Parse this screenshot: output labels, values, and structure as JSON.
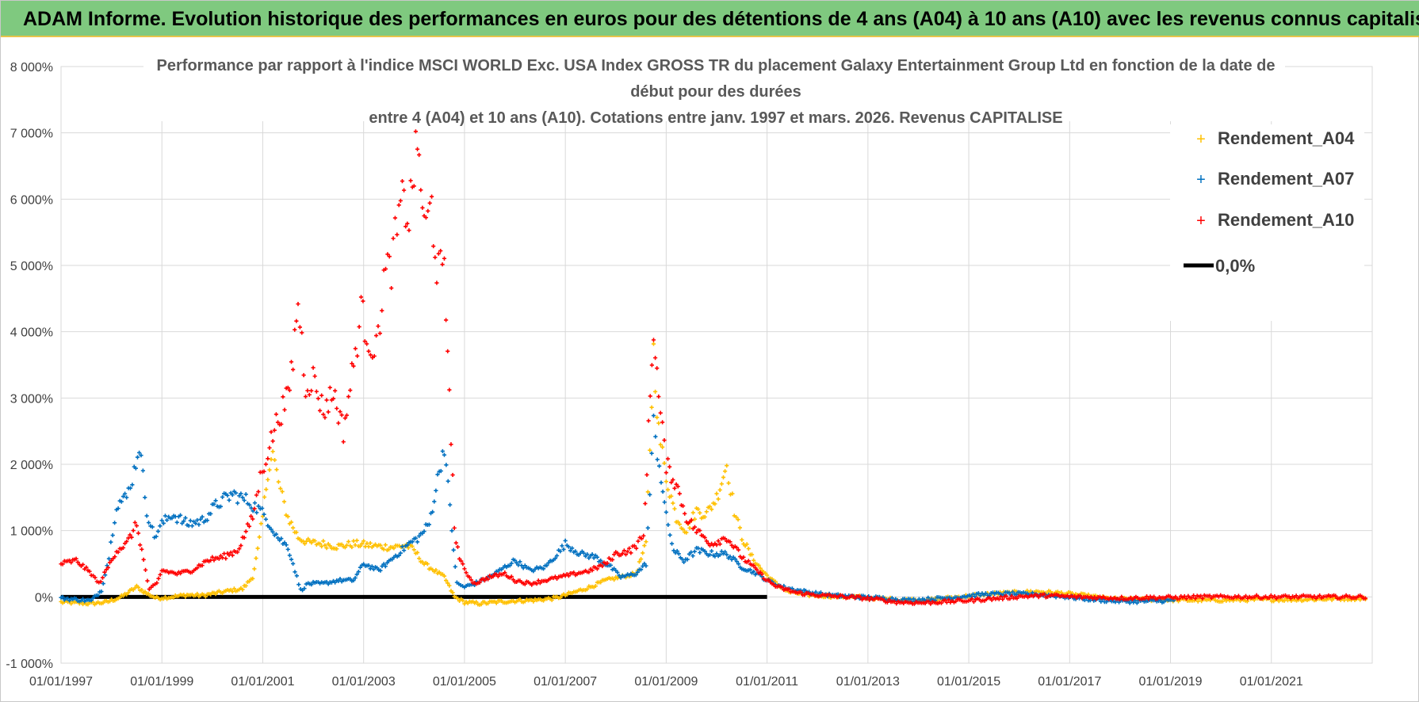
{
  "banner": {
    "title": "ADAM Informe. Evolution historique des performances en euros pour des détentions de 4 ans (A04) à 10 ans (A10) avec les revenus connus capitalisés"
  },
  "chart_data": {
    "type": "scatter",
    "title_lines": [
      "Performance par rapport à l'indice MSCI WORLD Exc. USA Index GROSS TR  du placement Galaxy Entertainment Group Ltd en fonction de la date de",
      "début pour des durées",
      "entre 4 (A04) et 10 ans (A10).  Cotations entre janv. 1997 et mars. 2026. Revenus CAPITALISE"
    ],
    "xlabel": "",
    "ylabel": "",
    "x_range": [
      1997.0,
      2023.0
    ],
    "ylim": [
      -1000,
      8000
    ],
    "grid": true,
    "legend_position": "top-right",
    "y_ticks": [
      {
        "value": -1000,
        "label": "-1 000%"
      },
      {
        "value": 0,
        "label": "0%"
      },
      {
        "value": 1000,
        "label": "1 000%"
      },
      {
        "value": 2000,
        "label": "2 000%"
      },
      {
        "value": 3000,
        "label": "3 000%"
      },
      {
        "value": 4000,
        "label": "4 000%"
      },
      {
        "value": 5000,
        "label": "5 000%"
      },
      {
        "value": 6000,
        "label": "6 000%"
      },
      {
        "value": 7000,
        "label": "7 000%"
      },
      {
        "value": 8000,
        "label": "8 000%"
      }
    ],
    "x_ticks": [
      {
        "value": 1997.0,
        "label": "01/01/1997"
      },
      {
        "value": 1999.0,
        "label": "01/01/1999"
      },
      {
        "value": 2001.0,
        "label": "01/01/2001"
      },
      {
        "value": 2003.0,
        "label": "01/01/2003"
      },
      {
        "value": 2005.0,
        "label": "01/01/2005"
      },
      {
        "value": 2007.0,
        "label": "01/01/2007"
      },
      {
        "value": 2009.0,
        "label": "01/01/2009"
      },
      {
        "value": 2011.0,
        "label": "01/01/2011"
      },
      {
        "value": 2013.0,
        "label": "01/01/2013"
      },
      {
        "value": 2015.0,
        "label": "01/01/2015"
      },
      {
        "value": 2017.0,
        "label": "01/01/2017"
      },
      {
        "value": 2019.0,
        "label": "01/01/2019"
      },
      {
        "value": 2021.0,
        "label": "01/01/2021"
      }
    ],
    "series": [
      {
        "name": "Rendement_A04",
        "color": "#ffc000",
        "points": [
          [
            1997.0,
            -80
          ],
          [
            1997.3,
            -90
          ],
          [
            1997.6,
            -100
          ],
          [
            1997.9,
            -80
          ],
          [
            1998.2,
            0
          ],
          [
            1998.5,
            150
          ],
          [
            1998.7,
            50
          ],
          [
            1998.9,
            -20
          ],
          [
            1999.2,
            0
          ],
          [
            1999.5,
            30
          ],
          [
            1999.8,
            20
          ],
          [
            2000.1,
            60
          ],
          [
            2000.4,
            100
          ],
          [
            2000.6,
            120
          ],
          [
            2000.8,
            300
          ],
          [
            2000.9,
            700
          ],
          [
            2001.0,
            1200
          ],
          [
            2001.1,
            1900
          ],
          [
            2001.2,
            2150
          ],
          [
            2001.35,
            1600
          ],
          [
            2001.5,
            1200
          ],
          [
            2001.7,
            900
          ],
          [
            2001.9,
            820
          ],
          [
            2002.2,
            800
          ],
          [
            2002.5,
            760
          ],
          [
            2002.8,
            800
          ],
          [
            2003.0,
            790
          ],
          [
            2003.3,
            760
          ],
          [
            2003.6,
            750
          ],
          [
            2003.85,
            780
          ],
          [
            2004.0,
            700
          ],
          [
            2004.2,
            500
          ],
          [
            2004.4,
            400
          ],
          [
            2004.6,
            300
          ],
          [
            2004.8,
            0
          ],
          [
            2005.0,
            -80
          ],
          [
            2005.3,
            -100
          ],
          [
            2005.6,
            -80
          ],
          [
            2006.0,
            -60
          ],
          [
            2006.4,
            -50
          ],
          [
            2006.8,
            -20
          ],
          [
            2007.1,
            50
          ],
          [
            2007.5,
            150
          ],
          [
            2007.8,
            250
          ],
          [
            2008.1,
            300
          ],
          [
            2008.4,
            350
          ],
          [
            2008.6,
            800
          ],
          [
            2008.75,
            3700
          ],
          [
            2008.85,
            2500
          ],
          [
            2009.0,
            1800
          ],
          [
            2009.2,
            1200
          ],
          [
            2009.4,
            1000
          ],
          [
            2009.6,
            1300
          ],
          [
            2009.8,
            1250
          ],
          [
            2010.0,
            1500
          ],
          [
            2010.2,
            2000
          ],
          [
            2010.35,
            1300
          ],
          [
            2010.5,
            900
          ],
          [
            2010.7,
            600
          ],
          [
            2010.9,
            400
          ],
          [
            2011.1,
            250
          ],
          [
            2011.4,
            80
          ],
          [
            2011.8,
            30
          ],
          [
            2012.3,
            10
          ],
          [
            2012.8,
            0
          ],
          [
            2013.3,
            -30
          ],
          [
            2013.8,
            -50
          ],
          [
            2014.3,
            -40
          ],
          [
            2014.8,
            0
          ],
          [
            2015.3,
            40
          ],
          [
            2015.8,
            60
          ],
          [
            2016.3,
            80
          ],
          [
            2016.8,
            60
          ],
          [
            2017.3,
            20
          ],
          [
            2017.8,
            -30
          ],
          [
            2018.3,
            -40
          ],
          [
            2018.8,
            -40
          ],
          [
            2019.3,
            -50
          ],
          [
            2020.0,
            -50
          ],
          [
            2020.8,
            -40
          ],
          [
            2021.5,
            -40
          ],
          [
            2022.2,
            -30
          ],
          [
            2022.9,
            -20
          ]
        ]
      },
      {
        "name": "Rendement_A07",
        "color": "#0070c0",
        "points": [
          [
            1997.0,
            -20
          ],
          [
            1997.3,
            -40
          ],
          [
            1997.6,
            -60
          ],
          [
            1997.8,
            100
          ],
          [
            1997.95,
            600
          ],
          [
            1998.1,
            1400
          ],
          [
            1998.3,
            1500
          ],
          [
            1998.45,
            1900
          ],
          [
            1998.55,
            2300
          ],
          [
            1998.7,
            1300
          ],
          [
            1998.85,
            900
          ],
          [
            1999.0,
            1100
          ],
          [
            1999.2,
            1250
          ],
          [
            1999.5,
            1100
          ],
          [
            1999.8,
            1150
          ],
          [
            2000.1,
            1400
          ],
          [
            2000.4,
            1550
          ],
          [
            2000.7,
            1450
          ],
          [
            2000.95,
            1300
          ],
          [
            2001.1,
            1150
          ],
          [
            2001.3,
            900
          ],
          [
            2001.5,
            750
          ],
          [
            2001.6,
            500
          ],
          [
            2001.75,
            100
          ],
          [
            2001.9,
            200
          ],
          [
            2002.2,
            200
          ],
          [
            2002.5,
            250
          ],
          [
            2002.8,
            250
          ],
          [
            2003.0,
            500
          ],
          [
            2003.3,
            400
          ],
          [
            2003.6,
            600
          ],
          [
            2003.9,
            800
          ],
          [
            2004.1,
            900
          ],
          [
            2004.3,
            1100
          ],
          [
            2004.5,
            1900
          ],
          [
            2004.6,
            2300
          ],
          [
            2004.75,
            1000
          ],
          [
            2004.85,
            200
          ],
          [
            2005.0,
            150
          ],
          [
            2005.2,
            200
          ],
          [
            2005.5,
            300
          ],
          [
            2005.8,
            450
          ],
          [
            2006.0,
            550
          ],
          [
            2006.3,
            400
          ],
          [
            2006.6,
            450
          ],
          [
            2006.9,
            700
          ],
          [
            2007.0,
            800
          ],
          [
            2007.3,
            650
          ],
          [
            2007.6,
            600
          ],
          [
            2007.9,
            450
          ],
          [
            2008.1,
            300
          ],
          [
            2008.4,
            350
          ],
          [
            2008.6,
            500
          ],
          [
            2008.75,
            2600
          ],
          [
            2008.9,
            1800
          ],
          [
            2009.0,
            1200
          ],
          [
            2009.15,
            700
          ],
          [
            2009.35,
            550
          ],
          [
            2009.6,
            700
          ],
          [
            2009.9,
            650
          ],
          [
            2010.2,
            650
          ],
          [
            2010.5,
            450
          ],
          [
            2010.8,
            350
          ],
          [
            2011.0,
            250
          ],
          [
            2011.3,
            150
          ],
          [
            2011.6,
            100
          ],
          [
            2011.9,
            60
          ],
          [
            2012.3,
            20
          ],
          [
            2012.8,
            0
          ],
          [
            2013.3,
            -20
          ],
          [
            2013.8,
            -50
          ],
          [
            2014.3,
            -30
          ],
          [
            2014.8,
            0
          ],
          [
            2015.3,
            40
          ],
          [
            2015.8,
            50
          ],
          [
            2016.3,
            40
          ],
          [
            2016.8,
            10
          ],
          [
            2017.3,
            -30
          ],
          [
            2017.8,
            -60
          ],
          [
            2018.3,
            -70
          ],
          [
            2018.8,
            -60
          ],
          [
            2019.1,
            -50
          ]
        ]
      },
      {
        "name": "Rendement_A10",
        "color": "#ff0000",
        "points": [
          [
            1997.0,
            500
          ],
          [
            1997.3,
            550
          ],
          [
            1997.6,
            350
          ],
          [
            1997.75,
            200
          ],
          [
            1997.9,
            400
          ],
          [
            1998.1,
            700
          ],
          [
            1998.3,
            800
          ],
          [
            1998.5,
            1100
          ],
          [
            1998.6,
            700
          ],
          [
            1998.75,
            100
          ],
          [
            1998.9,
            200
          ],
          [
            1999.0,
            400
          ],
          [
            1999.3,
            350
          ],
          [
            1999.6,
            400
          ],
          [
            1999.9,
            550
          ],
          [
            2000.2,
            600
          ],
          [
            2000.5,
            700
          ],
          [
            2000.8,
            1200
          ],
          [
            2000.95,
            1800
          ],
          [
            2001.1,
            2200
          ],
          [
            2001.3,
            2700
          ],
          [
            2001.5,
            3000
          ],
          [
            2001.6,
            3600
          ],
          [
            2001.7,
            4500
          ],
          [
            2001.85,
            3200
          ],
          [
            2002.0,
            3300
          ],
          [
            2002.2,
            2800
          ],
          [
            2002.4,
            3100
          ],
          [
            2002.6,
            2500
          ],
          [
            2002.8,
            3500
          ],
          [
            2002.95,
            4300
          ],
          [
            2003.1,
            3900
          ],
          [
            2003.25,
            3700
          ],
          [
            2003.4,
            4800
          ],
          [
            2003.55,
            5000
          ],
          [
            2003.7,
            5700
          ],
          [
            2003.8,
            6000
          ],
          [
            2003.9,
            5700
          ],
          [
            2004.0,
            6500
          ],
          [
            2004.1,
            6700
          ],
          [
            2004.2,
            5500
          ],
          [
            2004.35,
            5900
          ],
          [
            2004.45,
            5000
          ],
          [
            2004.6,
            4800
          ],
          [
            2004.7,
            3200
          ],
          [
            2004.8,
            1000
          ],
          [
            2004.9,
            600
          ],
          [
            2005.0,
            400
          ],
          [
            2005.2,
            200
          ],
          [
            2005.5,
            300
          ],
          [
            2005.8,
            350
          ],
          [
            2006.0,
            250
          ],
          [
            2006.3,
            200
          ],
          [
            2006.6,
            250
          ],
          [
            2006.9,
            300
          ],
          [
            2007.2,
            350
          ],
          [
            2007.5,
            400
          ],
          [
            2007.8,
            500
          ],
          [
            2008.0,
            650
          ],
          [
            2008.3,
            700
          ],
          [
            2008.55,
            900
          ],
          [
            2008.75,
            4100
          ],
          [
            2008.85,
            3000
          ],
          [
            2009.0,
            2000
          ],
          [
            2009.2,
            1700
          ],
          [
            2009.4,
            1200
          ],
          [
            2009.6,
            1000
          ],
          [
            2009.9,
            800
          ],
          [
            2010.2,
            900
          ],
          [
            2010.5,
            600
          ],
          [
            2010.8,
            400
          ],
          [
            2011.0,
            250
          ],
          [
            2011.2,
            150
          ],
          [
            2011.6,
            60
          ],
          [
            2012.1,
            20
          ],
          [
            2012.6,
            0
          ],
          [
            2013.1,
            -30
          ],
          [
            2013.6,
            -80
          ],
          [
            2014.1,
            -90
          ],
          [
            2014.6,
            -70
          ],
          [
            2015.1,
            -50
          ],
          [
            2015.6,
            -20
          ],
          [
            2016.1,
            10
          ],
          [
            2016.6,
            20
          ],
          [
            2017.1,
            0
          ],
          [
            2017.6,
            -10
          ],
          [
            2018.1,
            -20
          ],
          [
            2018.6,
            -10
          ],
          [
            2019.1,
            -10
          ],
          [
            2019.6,
            0
          ],
          [
            2020.1,
            0
          ],
          [
            2020.6,
            0
          ],
          [
            2021.1,
            0
          ],
          [
            2021.6,
            0
          ],
          [
            2022.1,
            0
          ],
          [
            2022.9,
            0
          ]
        ]
      }
    ],
    "reference_line": {
      "name": "0,0%",
      "value": 0,
      "color": "#000000"
    }
  }
}
